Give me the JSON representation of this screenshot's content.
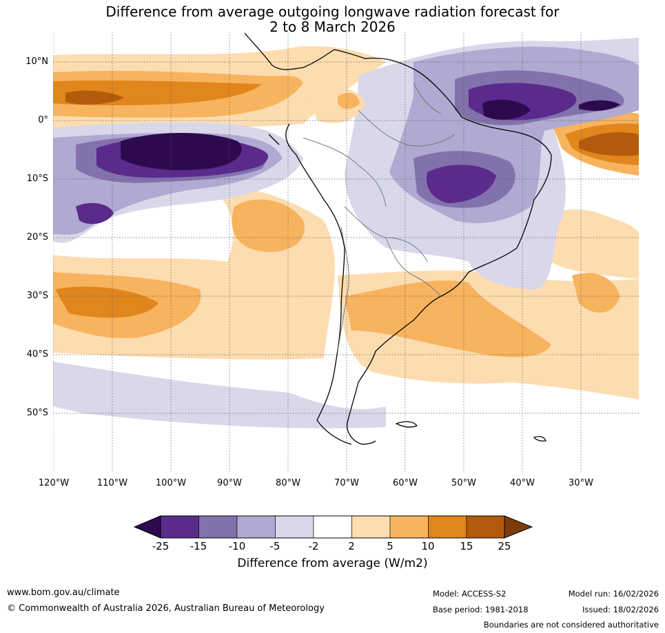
{
  "title_line1": "Difference from average outgoing longwave radiation forecast for",
  "title_line2": "2 to 8 March 2026",
  "lat_labels": [
    "10°N",
    "0°",
    "10°S",
    "20°S",
    "30°S",
    "40°S",
    "50°S"
  ],
  "lon_labels": [
    "120°W",
    "110°W",
    "100°W",
    "90°W",
    "80°W",
    "70°W",
    "60°W",
    "50°W",
    "40°W",
    "30°W"
  ],
  "colorbar": {
    "ticks": [
      "-25",
      "-15",
      "-10",
      "-5",
      "-2",
      "2",
      "5",
      "10",
      "15",
      "25"
    ],
    "colors": [
      "#2d0a4e",
      "#5a2a8c",
      "#8272ac",
      "#b0a9d1",
      "#d8d8ea",
      "#ffffff",
      "#fddcb0",
      "#f8b35e",
      "#e0861c",
      "#b45a0c",
      "#7c3c0a"
    ],
    "label": "Difference from average (W/m2)"
  },
  "footer": {
    "website": "www.bom.gov.au/climate",
    "copyright": "© Commonwealth of Australia 2026, Australian Bureau of Meteorology",
    "model": "Model: ACCESS-S2",
    "model_run": "Model run: 16/02/2026",
    "base_period": "Base period: 1981-2018",
    "issued": "Issued: 18/02/2026",
    "disclaimer": "Boundaries are not considered authoritative"
  }
}
